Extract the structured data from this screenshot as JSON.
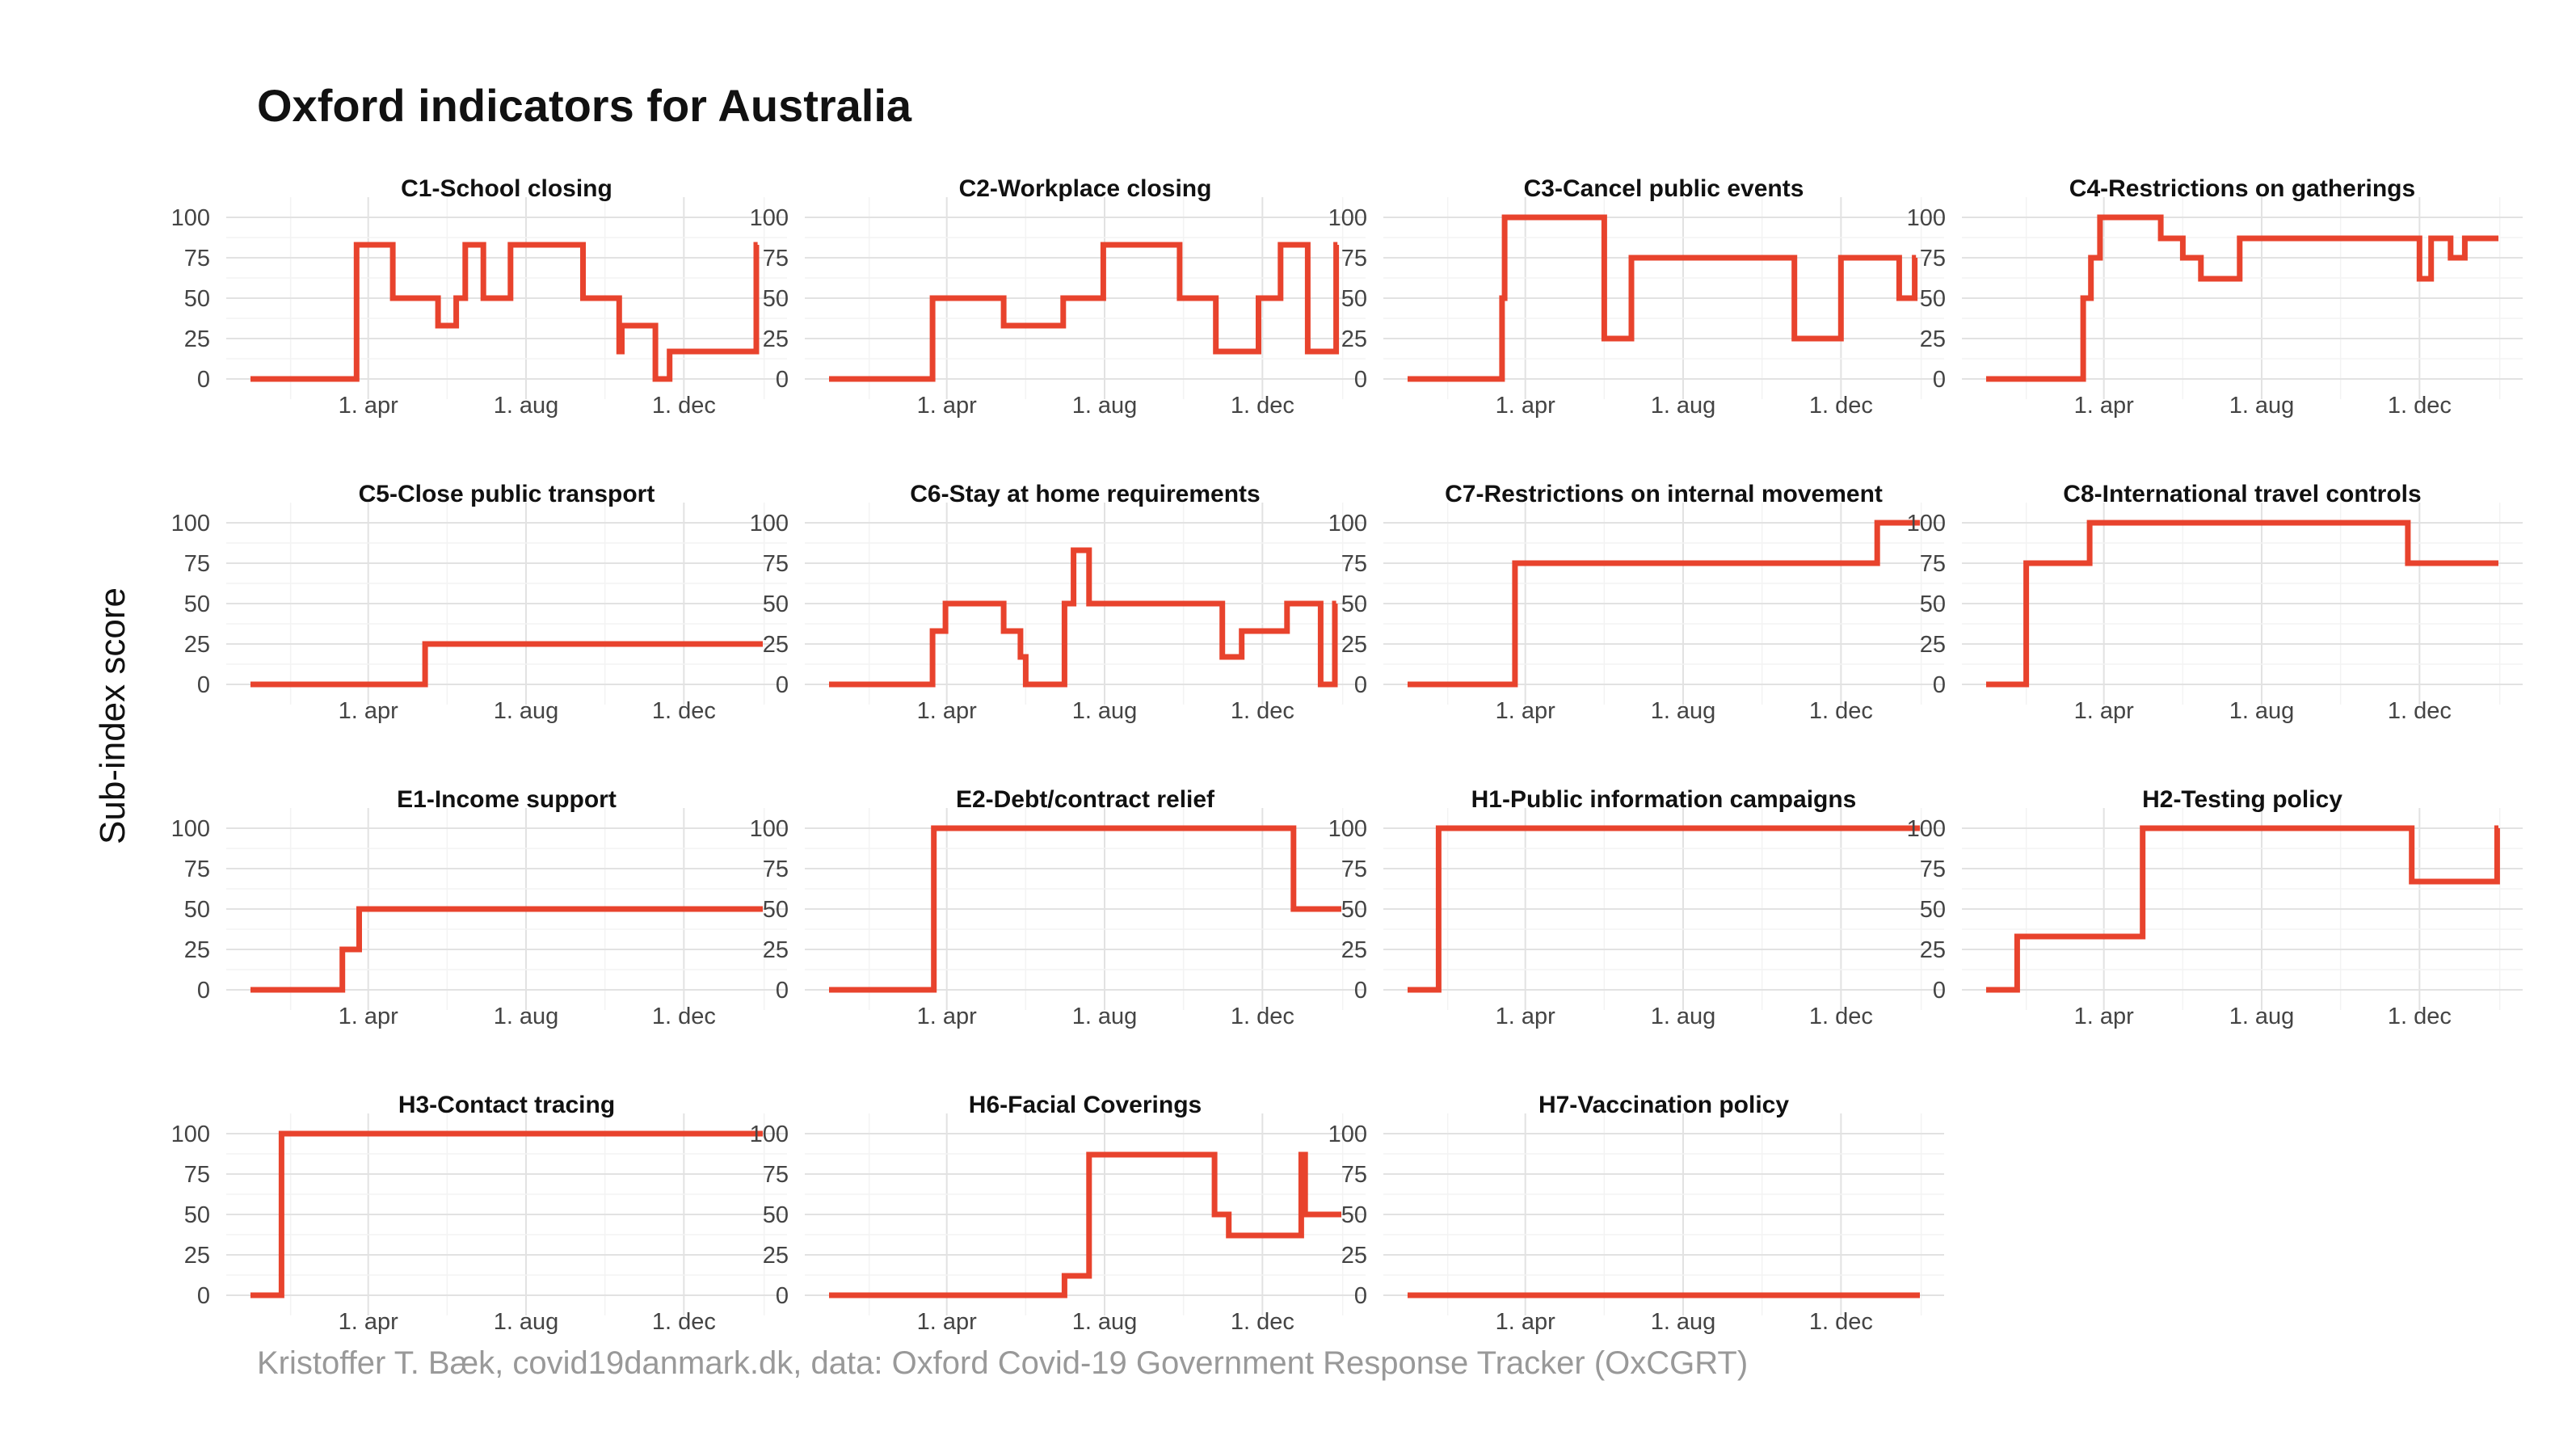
{
  "title": "Oxford indicators for Australia",
  "ylabel": "Sub-index score",
  "caption": "Kristoffer T. Bæk, covid19danmark.dk, data: Oxford Covid-19 Government Response Tracker (OxCGRT)",
  "line_color": "#e8432d",
  "chart_data": {
    "type": "line",
    "x_unit": "date",
    "x_range": [
      "2020-01-01",
      "2021-01-31"
    ],
    "x_ticks": [
      {
        "date": "2020-04-01",
        "label": "1. apr"
      },
      {
        "date": "2020-08-01",
        "label": "1. aug"
      },
      {
        "date": "2020-12-01",
        "label": "1. dec"
      }
    ],
    "y_ticks": [
      0,
      25,
      50,
      75,
      100
    ],
    "ylim": [
      0,
      100
    ],
    "grid": true,
    "panels": [
      {
        "title": "C1-School closing",
        "steps": [
          [
            "2020-01-01",
            0
          ],
          [
            "2020-03-23",
            83
          ],
          [
            "2020-04-20",
            50
          ],
          [
            "2020-05-25",
            33
          ],
          [
            "2020-06-08",
            50
          ],
          [
            "2020-06-15",
            83
          ],
          [
            "2020-06-29",
            50
          ],
          [
            "2020-07-20",
            83
          ],
          [
            "2020-09-14",
            50
          ],
          [
            "2020-10-12",
            17
          ],
          [
            "2020-10-14",
            33
          ],
          [
            "2020-11-09",
            0
          ],
          [
            "2020-11-20",
            17
          ],
          [
            "2021-01-26",
            83
          ]
        ],
        "end": "2021-01-27"
      },
      {
        "title": "C2-Workplace closing",
        "steps": [
          [
            "2020-01-01",
            0
          ],
          [
            "2020-03-21",
            50
          ],
          [
            "2020-05-15",
            33
          ],
          [
            "2020-06-30",
            50
          ],
          [
            "2020-07-31",
            83
          ],
          [
            "2020-09-28",
            50
          ],
          [
            "2020-10-26",
            17
          ],
          [
            "2020-11-28",
            50
          ],
          [
            "2020-12-15",
            83
          ],
          [
            "2021-01-05",
            17
          ],
          [
            "2021-01-27",
            83
          ]
        ],
        "end": "2021-01-28"
      },
      {
        "title": "C3-Cancel public events",
        "steps": [
          [
            "2020-01-01",
            0
          ],
          [
            "2020-03-14",
            50
          ],
          [
            "2020-03-16",
            100
          ],
          [
            "2020-06-01",
            25
          ],
          [
            "2020-06-22",
            75
          ],
          [
            "2020-10-26",
            25
          ],
          [
            "2020-12-01",
            75
          ],
          [
            "2021-01-15",
            50
          ],
          [
            "2021-01-27",
            75
          ]
        ],
        "end": "2021-01-28"
      },
      {
        "title": "C4-Restrictions on gatherings",
        "steps": [
          [
            "2020-01-01",
            0
          ],
          [
            "2020-03-16",
            50
          ],
          [
            "2020-03-22",
            75
          ],
          [
            "2020-03-29",
            100
          ],
          [
            "2020-05-15",
            87
          ],
          [
            "2020-06-01",
            75
          ],
          [
            "2020-06-15",
            62
          ],
          [
            "2020-07-15",
            87
          ],
          [
            "2020-12-01",
            62
          ],
          [
            "2020-12-10",
            87
          ],
          [
            "2020-12-25",
            75
          ],
          [
            "2021-01-05",
            87
          ]
        ],
        "end": "2021-01-31"
      },
      {
        "title": "C5-Close public transport",
        "steps": [
          [
            "2020-01-01",
            0
          ],
          [
            "2020-05-15",
            25
          ]
        ],
        "end": "2021-01-31"
      },
      {
        "title": "C6-Stay at home requirements",
        "steps": [
          [
            "2020-01-01",
            0
          ],
          [
            "2020-03-21",
            33
          ],
          [
            "2020-03-31",
            50
          ],
          [
            "2020-05-15",
            33
          ],
          [
            "2020-05-28",
            17
          ],
          [
            "2020-06-01",
            0
          ],
          [
            "2020-07-01",
            50
          ],
          [
            "2020-07-08",
            83
          ],
          [
            "2020-07-20",
            50
          ],
          [
            "2020-10-31",
            17
          ],
          [
            "2020-11-15",
            33
          ],
          [
            "2020-12-20",
            50
          ],
          [
            "2021-01-15",
            0
          ],
          [
            "2021-01-26",
            50
          ]
        ],
        "end": "2021-01-27"
      },
      {
        "title": "C7-Restrictions on internal movement",
        "steps": [
          [
            "2020-01-01",
            0
          ],
          [
            "2020-03-24",
            75
          ],
          [
            "2020-12-29",
            100
          ]
        ],
        "end": "2021-01-31"
      },
      {
        "title": "C8-International travel controls",
        "steps": [
          [
            "2020-01-01",
            0
          ],
          [
            "2020-02-01",
            75
          ],
          [
            "2020-03-21",
            100
          ],
          [
            "2020-11-22",
            75
          ]
        ],
        "end": "2021-01-31"
      },
      {
        "title": "E1-Income support",
        "steps": [
          [
            "2020-01-01",
            0
          ],
          [
            "2020-03-12",
            25
          ],
          [
            "2020-03-25",
            50
          ]
        ],
        "end": "2021-01-31"
      },
      {
        "title": "E2-Debt/contract relief",
        "steps": [
          [
            "2020-01-01",
            0
          ],
          [
            "2020-03-22",
            100
          ],
          [
            "2020-12-25",
            50
          ]
        ],
        "end": "2021-01-31"
      },
      {
        "title": "H1-Public information campaigns",
        "steps": [
          [
            "2020-01-01",
            0
          ],
          [
            "2020-01-25",
            100
          ]
        ],
        "end": "2021-01-31"
      },
      {
        "title": "H2-Testing policy",
        "steps": [
          [
            "2020-01-01",
            0
          ],
          [
            "2020-01-25",
            33
          ],
          [
            "2020-05-01",
            100
          ],
          [
            "2020-11-25",
            67
          ],
          [
            "2021-01-30",
            100
          ]
        ],
        "end": "2021-01-31"
      },
      {
        "title": "H3-Contact tracing",
        "steps": [
          [
            "2020-01-01",
            0
          ],
          [
            "2020-01-25",
            100
          ]
        ],
        "end": "2021-01-31"
      },
      {
        "title": "H6-Facial Coverings",
        "steps": [
          [
            "2020-01-01",
            0
          ],
          [
            "2020-07-01",
            12
          ],
          [
            "2020-07-20",
            87
          ],
          [
            "2020-10-25",
            50
          ],
          [
            "2020-11-05",
            37
          ],
          [
            "2020-12-31",
            87
          ],
          [
            "2021-01-03",
            50
          ]
        ],
        "end": "2021-01-31"
      },
      {
        "title": "H7-Vaccination policy",
        "steps": [
          [
            "2020-01-01",
            0
          ]
        ],
        "end": "2021-01-31"
      }
    ]
  }
}
